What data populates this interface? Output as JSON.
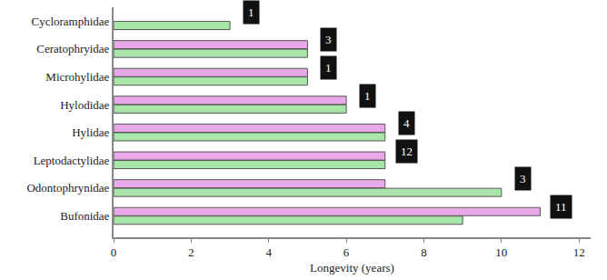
{
  "chart_data": {
    "type": "bar",
    "orientation": "horizontal",
    "x_label": "Longevity (years)",
    "categories": [
      "Cycloramphidae",
      "Ceratophryidae",
      "Microhylidae",
      "Hylodidae",
      "Hylidae",
      "Leptodactylidae",
      "Odontophrynidae",
      "Bufonidae"
    ],
    "series": [
      {
        "color": "#e8a8ea",
        "values": [
          null,
          5,
          5,
          6,
          7,
          7,
          7,
          11
        ]
      },
      {
        "color": "#a9e6a9",
        "values": [
          3,
          5,
          5,
          6,
          7,
          7,
          10,
          9
        ]
      }
    ],
    "annotations": [
      {
        "category": "Cycloramphidae",
        "text": "1"
      },
      {
        "category": "Ceratophryidae",
        "text": "3"
      },
      {
        "category": "Microhylidae",
        "text": "1"
      },
      {
        "category": "Hylodidae",
        "text": "1"
      },
      {
        "category": "Hylidae",
        "text": "4"
      },
      {
        "category": "Leptodactylidae",
        "text": "12"
      },
      {
        "category": "Odontophrynidae",
        "text": "3"
      },
      {
        "category": "Bufonidae",
        "text": "11"
      }
    ],
    "xlim": [
      0,
      12.3
    ],
    "xticks": [
      0,
      2,
      4,
      6,
      8,
      10,
      12
    ],
    "grid": false
  }
}
